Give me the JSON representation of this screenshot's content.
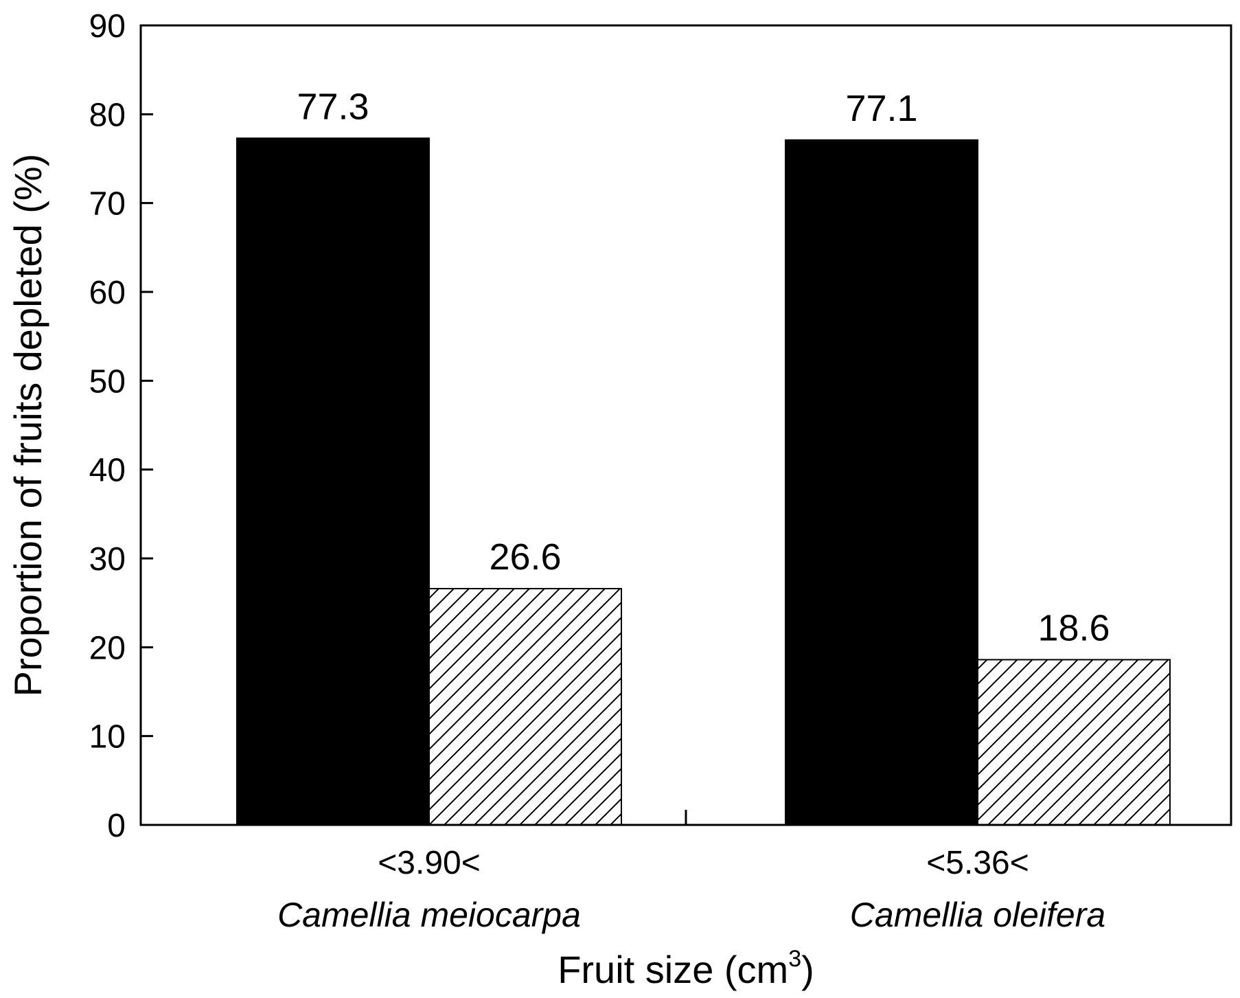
{
  "chart_data": {
    "type": "bar",
    "ylabel": "Proportion of fruits depleted (%)",
    "xlabel": "Fruit size (cm",
    "xlabel_sup": "3",
    "xlabel_close": ")",
    "ylim": [
      0,
      90
    ],
    "yticks": [
      0,
      10,
      20,
      30,
      40,
      50,
      60,
      70,
      80,
      90
    ],
    "groups": [
      {
        "category": "<3.90<",
        "species": "Camellia meiocarpa"
      },
      {
        "category": "<5.36<",
        "species": "Camellia oleifera"
      }
    ],
    "series": [
      {
        "fill": "solid-black",
        "values": [
          77.3,
          77.1
        ],
        "labels": [
          "77.3",
          "77.1"
        ]
      },
      {
        "fill": "diagonal-hatch",
        "values": [
          26.6,
          18.6
        ],
        "labels": [
          "26.6",
          "18.6"
        ]
      }
    ],
    "grid": false,
    "colors": {
      "solid": "#000000",
      "hatch_line": "#000000",
      "hatch_bg": "#ffffff"
    }
  }
}
